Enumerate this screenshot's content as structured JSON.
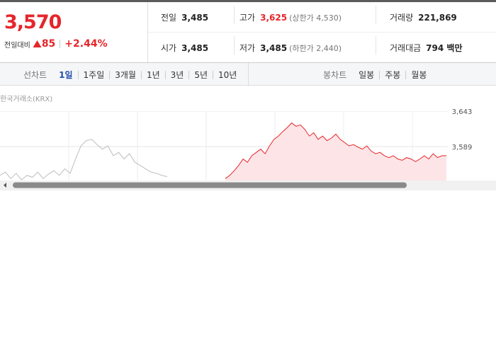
{
  "price": {
    "current": "3,570",
    "change_label": "전일대비",
    "change": "85",
    "change_rate": "+2.44%"
  },
  "stats": {
    "rows": [
      [
        {
          "label": "전일",
          "value": "3,485"
        },
        {
          "label": "고가",
          "value": "3,625",
          "note": "(상한가 4,530)"
        },
        {
          "label": "거래량",
          "value": "221,869"
        }
      ],
      [
        {
          "label": "시가",
          "value": "3,485"
        },
        {
          "label": "저가",
          "value": "3,485",
          "note": "(하한가 2,440)"
        },
        {
          "label": "거래대금",
          "value": "794 백만"
        }
      ]
    ]
  },
  "tabs": {
    "line_label": "선차트",
    "line_periods": [
      "1일",
      "1주일",
      "3개월",
      "1년",
      "3년",
      "5년",
      "10년"
    ],
    "candle_label": "봉차트",
    "candle_periods": [
      "일봉",
      "주봉",
      "월봉"
    ]
  },
  "chart_data": {
    "type": "line",
    "source": "한국거래소(KRX)",
    "ylim": [
      3537,
      3643
    ],
    "yticks": [
      {
        "value": 3643,
        "label": "3,643"
      },
      {
        "value": 3589,
        "label": "3,589"
      }
    ],
    "series": [
      {
        "color": "#bdbdbd",
        "values": [
          3545,
          3550,
          3540,
          3548,
          3538,
          3545,
          3542,
          3550,
          3540,
          3547,
          3552,
          3545,
          3555,
          3548,
          3570,
          3590,
          3598,
          3600,
          3592,
          3585,
          3590,
          3575,
          3580,
          3570,
          3578,
          3565,
          3560,
          3555,
          3550,
          3548,
          3545,
          3543
        ]
      },
      {
        "color": "#e5262b",
        "values": [
          3540,
          3545,
          3552,
          3560,
          3570,
          3565,
          3575,
          3580,
          3585,
          3578,
          3590,
          3600,
          3605,
          3612,
          3618,
          3625,
          3620,
          3622,
          3615,
          3605,
          3610,
          3600,
          3605,
          3598,
          3602,
          3608,
          3600,
          3595,
          3590,
          3592,
          3588,
          3585,
          3590,
          3582,
          3578,
          3580,
          3575,
          3572,
          3575,
          3570,
          3568,
          3572,
          3570,
          3566,
          3570,
          3575,
          3570,
          3578,
          3572,
          3575,
          3575
        ]
      }
    ]
  }
}
